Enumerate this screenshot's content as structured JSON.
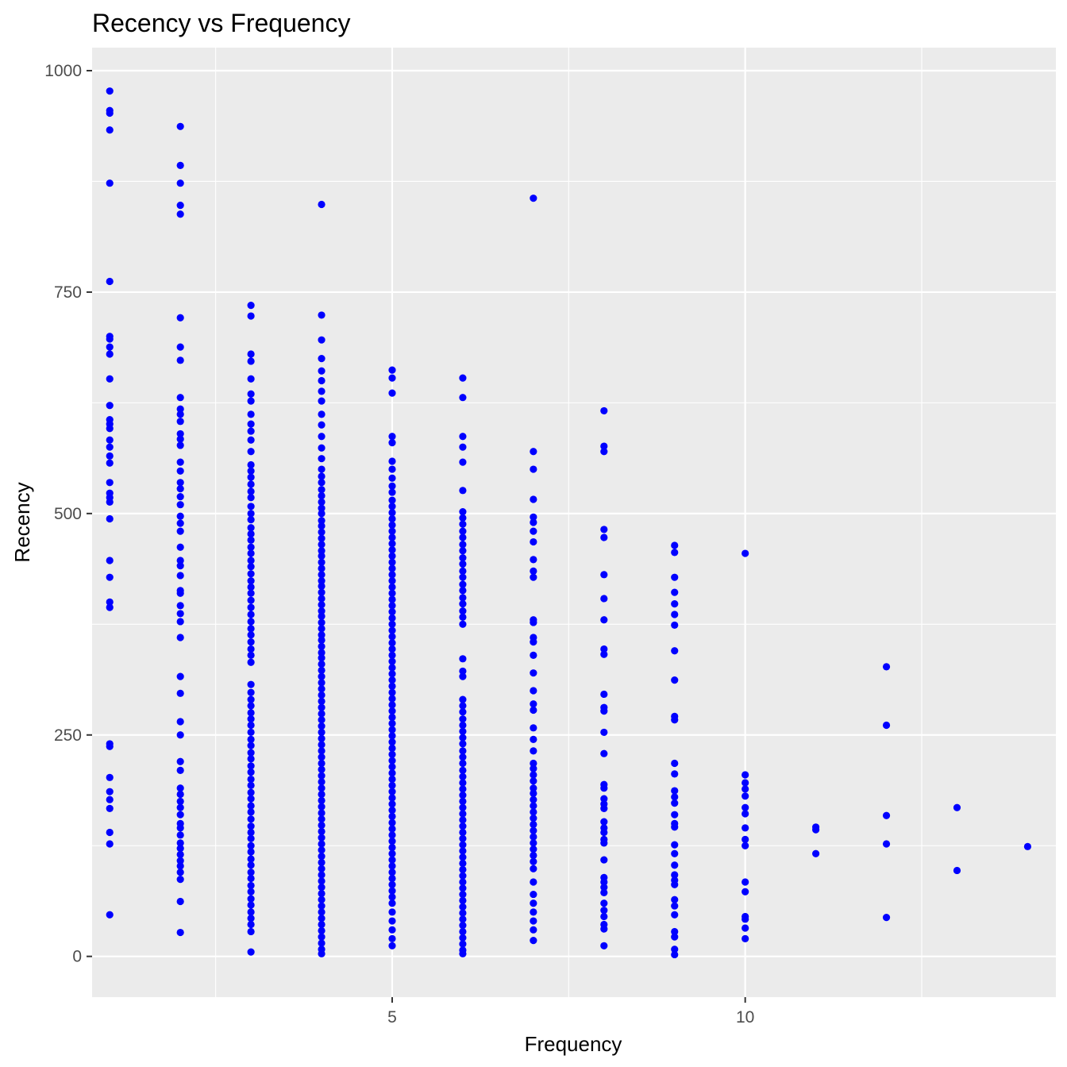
{
  "chart_data": {
    "type": "scatter",
    "title": "Recency vs Frequency",
    "xlabel": "Frequency",
    "ylabel": "Recency",
    "xlim": [
      0.75,
      14.4
    ],
    "ylim": [
      -46,
      1026
    ],
    "x_ticks": [
      {
        "value": 5,
        "label": "5"
      },
      {
        "value": 10,
        "label": "10"
      }
    ],
    "x_minor_ticks": [
      2.5,
      7.5,
      12.5
    ],
    "y_ticks": [
      {
        "value": 0,
        "label": "0"
      },
      {
        "value": 250,
        "label": "250"
      },
      {
        "value": 500,
        "label": "500"
      },
      {
        "value": 750,
        "label": "750"
      },
      {
        "value": 1000,
        "label": "1000"
      }
    ],
    "y_minor_ticks": [
      125,
      375,
      625,
      875
    ],
    "grid": true,
    "point_color": "#0000FF",
    "panel_color": "#EBEBEB",
    "grid_color": "#FFFFFF",
    "series": [
      {
        "x": 1,
        "values": [
          977,
          955,
          952,
          933,
          873,
          762,
          700,
          697,
          688,
          680,
          652,
          622,
          606,
          601,
          596,
          583,
          575,
          565,
          557,
          535,
          523,
          518,
          513,
          494,
          447,
          428,
          400,
          394,
          240,
          237,
          202,
          186,
          177,
          167,
          140,
          127,
          47
        ]
      },
      {
        "x": 2,
        "values": [
          937,
          893,
          873,
          848,
          838,
          721,
          688,
          673,
          631,
          618,
          612,
          604,
          590,
          584,
          577,
          558,
          548,
          535,
          528,
          519,
          510,
          497,
          489,
          480,
          462,
          447,
          441,
          430,
          413,
          410,
          396,
          387,
          378,
          360,
          316,
          297,
          265,
          250,
          220,
          210,
          190,
          183,
          175,
          168,
          160,
          150,
          145,
          137,
          128,
          122,
          115,
          108,
          102,
          95,
          87,
          62,
          27
        ]
      },
      {
        "x": 3,
        "values": [
          735,
          723,
          680,
          672,
          652,
          635,
          627,
          612,
          601,
          593,
          583,
          570,
          555,
          548,
          541,
          533,
          525,
          518,
          508,
          500,
          493,
          484,
          477,
          470,
          462,
          455,
          447,
          440,
          432,
          424,
          417,
          410,
          402,
          394,
          386,
          378,
          370,
          363,
          355,
          347,
          340,
          332,
          307,
          298,
          290,
          283,
          275,
          268,
          261,
          253,
          245,
          238,
          230,
          223,
          215,
          208,
          200,
          193,
          185,
          178,
          170,
          163,
          155,
          147,
          140,
          133,
          125,
          118,
          110,
          103,
          95,
          88,
          80,
          73,
          65,
          58,
          50,
          43,
          36,
          28,
          5
        ]
      },
      {
        "x": 4,
        "values": [
          849,
          724,
          696,
          675,
          661,
          650,
          638,
          627,
          612,
          600,
          587,
          574,
          562,
          550,
          542,
          535,
          527,
          520,
          513,
          506,
          500,
          492,
          486,
          479,
          472,
          465,
          458,
          452,
          445,
          438,
          431,
          424,
          418,
          411,
          404,
          397,
          390,
          384,
          377,
          370,
          363,
          357,
          350,
          343,
          337,
          330,
          323,
          316,
          309,
          302,
          295,
          288,
          281,
          274,
          267,
          260,
          253,
          246,
          239,
          232,
          225,
          218,
          211,
          204,
          197,
          190,
          183,
          176,
          169,
          162,
          155,
          148,
          141,
          134,
          127,
          120,
          113,
          106,
          99,
          92,
          85,
          78,
          71,
          64,
          57,
          50,
          43,
          36,
          29,
          22,
          15,
          8,
          3
        ]
      },
      {
        "x": 5,
        "values": [
          662,
          653,
          636,
          587,
          580,
          559,
          550,
          540,
          531,
          524,
          515,
          508,
          501,
          494,
          487,
          480,
          473,
          466,
          459,
          452,
          445,
          438,
          431,
          424,
          417,
          410,
          403,
          396,
          389,
          382,
          375,
          368,
          361,
          354,
          347,
          340,
          333,
          326,
          319,
          312,
          305,
          298,
          291,
          284,
          277,
          270,
          263,
          256,
          249,
          242,
          235,
          228,
          221,
          214,
          207,
          200,
          193,
          186,
          179,
          172,
          165,
          158,
          151,
          144,
          137,
          130,
          123,
          116,
          109,
          102,
          95,
          88,
          81,
          74,
          67,
          60,
          50,
          40,
          30,
          20,
          12
        ]
      },
      {
        "x": 6,
        "values": [
          653,
          631,
          587,
          575,
          558,
          526,
          502,
          495,
          488,
          480,
          473,
          465,
          458,
          450,
          443,
          435,
          428,
          420,
          413,
          405,
          398,
          390,
          383,
          375,
          336,
          322,
          316,
          290,
          283,
          276,
          268,
          261,
          254,
          247,
          240,
          232,
          225,
          218,
          210,
          203,
          196,
          189,
          182,
          175,
          168,
          161,
          154,
          147,
          140,
          133,
          126,
          119,
          112,
          105,
          98,
          91,
          84,
          77,
          70,
          63,
          56,
          49,
          42,
          35,
          28,
          21,
          14,
          7,
          3
        ]
      },
      {
        "x": 7,
        "values": [
          856,
          570,
          550,
          516,
          496,
          490,
          480,
          468,
          448,
          435,
          428,
          380,
          377,
          360,
          355,
          340,
          320,
          300,
          285,
          278,
          258,
          245,
          232,
          218,
          212,
          205,
          198,
          190,
          184,
          177,
          170,
          163,
          156,
          149,
          142,
          135,
          128,
          121,
          114,
          107,
          99,
          84,
          70,
          60,
          50,
          40,
          30,
          18
        ]
      },
      {
        "x": 8,
        "values": [
          616,
          576,
          570,
          482,
          473,
          431,
          404,
          380,
          347,
          341,
          296,
          281,
          277,
          253,
          229,
          194,
          190,
          178,
          172,
          167,
          152,
          145,
          140,
          132,
          128,
          109,
          89,
          84,
          78,
          72,
          60,
          52,
          45,
          36,
          31,
          12
        ]
      },
      {
        "x": 9,
        "values": [
          464,
          456,
          428,
          411,
          398,
          386,
          374,
          345,
          312,
          271,
          267,
          218,
          206,
          187,
          180,
          173,
          160,
          150,
          146,
          126,
          116,
          103,
          92,
          86,
          81,
          64,
          57,
          47,
          28,
          22,
          8,
          2
        ]
      },
      {
        "x": 10,
        "values": [
          455,
          205,
          196,
          189,
          181,
          168,
          161,
          145,
          132,
          125,
          84,
          73,
          45,
          42,
          32,
          20
        ]
      },
      {
        "x": 11,
        "values": [
          146,
          143,
          116
        ]
      },
      {
        "x": 12,
        "values": [
          327,
          261,
          159,
          127,
          44
        ]
      },
      {
        "x": 13,
        "values": [
          168,
          97
        ]
      },
      {
        "x": 14,
        "values": [
          124
        ]
      }
    ]
  }
}
